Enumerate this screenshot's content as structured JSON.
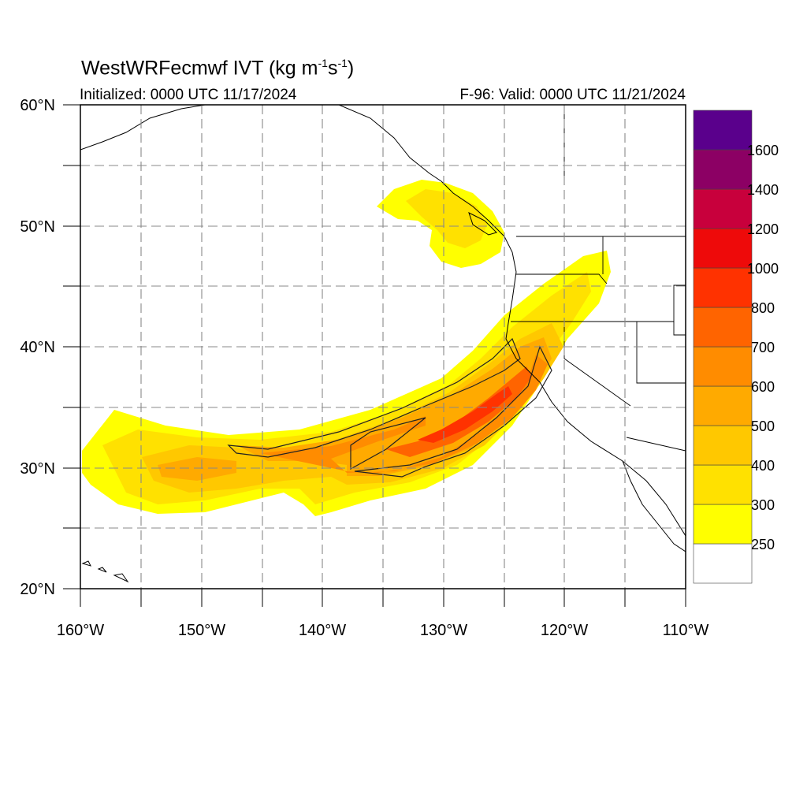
{
  "title": {
    "main": "WestWRFecmwf IVT (kg m",
    "exp1": "-1",
    "mid": "s",
    "exp2": "-1",
    "end": ")"
  },
  "initialized": "Initialized: 0000 UTC 11/17/2024",
  "valid": "F-96: Valid: 0000 UTC 11/21/2024",
  "map": {
    "lon_range": [
      -160,
      -110
    ],
    "lat_range": [
      20,
      60
    ],
    "lon_labels": [
      "160°W",
      "150°W",
      "140°W",
      "130°W",
      "120°W",
      "110°W"
    ],
    "lat_labels": [
      "60°N",
      "50°N",
      "40°N",
      "30°N",
      "20°N"
    ],
    "grid": "dashed, every 5 degrees"
  },
  "colorbar": {
    "levels": [
      "250",
      "300",
      "400",
      "500",
      "600",
      "700",
      "800",
      "1000",
      "1200",
      "1400",
      "1600"
    ],
    "colors": [
      "#ffffff",
      "#ffff00",
      "#ffe100",
      "#ffc800",
      "#ffaa00",
      "#ff8c00",
      "#ff6400",
      "#ff3200",
      "#ee0a0a",
      "#c8003c",
      "#8c0064",
      "#5a008c"
    ]
  }
}
